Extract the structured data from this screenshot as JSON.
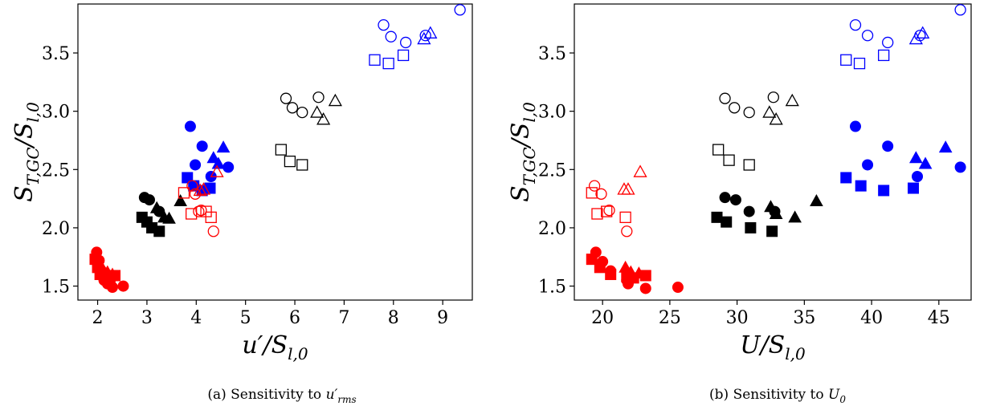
{
  "colors": {
    "red": "#ff0000",
    "black": "#000000",
    "blue": "#0000ff"
  },
  "chart_data": [
    {
      "type": "scatter",
      "xlabel": "u′/S_l,0",
      "ylabel": "S_T,GC/S_l,0",
      "caption": {
        "prefix": "(a)  Sensitivity to ",
        "var": "u′",
        "sub": "rms"
      },
      "xlim": [
        1.6,
        9.6
      ],
      "ylim": [
        1.38,
        3.92
      ],
      "xticks": [
        2,
        3,
        4,
        5,
        6,
        7,
        8,
        9
      ],
      "yticks": [
        1.5,
        2.0,
        2.5,
        3.0,
        3.5
      ],
      "series": [
        {
          "marker": "square",
          "color": "red",
          "filled": true,
          "points": [
            [
              1.95,
              1.73
            ],
            [
              2.0,
              1.66
            ],
            [
              2.05,
              1.6
            ],
            [
              2.15,
              1.57
            ],
            [
              2.25,
              1.58
            ],
            [
              2.35,
              1.59
            ]
          ]
        },
        {
          "marker": "circle",
          "color": "red",
          "filled": true,
          "points": [
            [
              1.98,
              1.79
            ],
            [
              2.03,
              1.72
            ],
            [
              2.08,
              1.63
            ],
            [
              2.13,
              1.55
            ],
            [
              2.2,
              1.52
            ],
            [
              2.3,
              1.49
            ],
            [
              2.52,
              1.5
            ]
          ]
        },
        {
          "marker": "triangle",
          "color": "red",
          "filled": true,
          "points": [
            [
              2.1,
              1.65
            ],
            [
              2.2,
              1.62
            ],
            [
              2.3,
              1.6
            ]
          ]
        },
        {
          "marker": "square",
          "color": "black",
          "filled": true,
          "points": [
            [
              2.9,
              2.09
            ],
            [
              3.0,
              2.05
            ],
            [
              3.1,
              2.0
            ],
            [
              3.25,
              1.97
            ]
          ]
        },
        {
          "marker": "circle",
          "color": "black",
          "filled": true,
          "points": [
            [
              2.95,
              2.26
            ],
            [
              3.05,
              2.24
            ],
            [
              3.25,
              2.14
            ]
          ]
        },
        {
          "marker": "triangle",
          "color": "black",
          "filled": true,
          "points": [
            [
              3.2,
              2.17
            ],
            [
              3.35,
              2.09
            ],
            [
              3.45,
              2.08
            ],
            [
              3.68,
              2.23
            ]
          ]
        },
        {
          "marker": "square",
          "color": "blue",
          "filled": true,
          "points": [
            [
              3.82,
              2.43
            ],
            [
              3.95,
              2.36
            ],
            [
              4.12,
              2.32
            ],
            [
              4.28,
              2.34
            ]
          ]
        },
        {
          "marker": "circle",
          "color": "blue",
          "filled": true,
          "points": [
            [
              3.88,
              2.87
            ],
            [
              3.98,
              2.54
            ],
            [
              4.12,
              2.7
            ],
            [
              4.3,
              2.44
            ],
            [
              4.65,
              2.52
            ]
          ]
        },
        {
          "marker": "triangle",
          "color": "blue",
          "filled": true,
          "points": [
            [
              4.35,
              2.6
            ],
            [
              4.45,
              2.55
            ],
            [
              4.55,
              2.69
            ]
          ]
        },
        {
          "marker": "square",
          "color": "red",
          "filled": false,
          "points": [
            [
              3.75,
              2.3
            ],
            [
              3.9,
              2.12
            ],
            [
              4.2,
              2.14
            ],
            [
              4.3,
              2.09
            ]
          ]
        },
        {
          "marker": "circle",
          "color": "red",
          "filled": false,
          "points": [
            [
              3.92,
              2.36
            ],
            [
              3.98,
              2.29
            ],
            [
              4.05,
              2.14
            ],
            [
              4.1,
              2.15
            ],
            [
              4.35,
              1.97
            ]
          ]
        },
        {
          "marker": "triangle",
          "color": "red",
          "filled": false,
          "points": [
            [
              4.08,
              2.32
            ],
            [
              4.15,
              2.33
            ],
            [
              4.42,
              2.48
            ]
          ]
        },
        {
          "marker": "square",
          "color": "black",
          "filled": false,
          "points": [
            [
              5.72,
              2.67
            ],
            [
              5.9,
              2.57
            ],
            [
              6.15,
              2.54
            ]
          ]
        },
        {
          "marker": "circle",
          "color": "black",
          "filled": false,
          "points": [
            [
              5.82,
              3.11
            ],
            [
              5.95,
              3.03
            ],
            [
              6.15,
              2.99
            ],
            [
              6.48,
              3.12
            ]
          ]
        },
        {
          "marker": "triangle",
          "color": "black",
          "filled": false,
          "points": [
            [
              6.45,
              2.99
            ],
            [
              6.58,
              2.93
            ],
            [
              6.82,
              3.09
            ]
          ]
        },
        {
          "marker": "square",
          "color": "blue",
          "filled": false,
          "points": [
            [
              7.62,
              3.44
            ],
            [
              7.9,
              3.41
            ],
            [
              8.2,
              3.48
            ]
          ]
        },
        {
          "marker": "circle",
          "color": "blue",
          "filled": false,
          "points": [
            [
              7.8,
              3.74
            ],
            [
              7.95,
              3.64
            ],
            [
              8.25,
              3.59
            ],
            [
              8.65,
              3.65
            ],
            [
              9.35,
              3.87
            ]
          ]
        },
        {
          "marker": "triangle",
          "color": "blue",
          "filled": false,
          "points": [
            [
              8.62,
              3.62
            ],
            [
              8.75,
              3.67
            ]
          ]
        }
      ]
    },
    {
      "type": "scatter",
      "xlabel": "U/S_l,0",
      "ylabel": "S_T,GC/S_l,0",
      "caption": {
        "prefix": "(b)  Sensitivity to ",
        "var": "U",
        "sub": "0"
      },
      "xlim": [
        17.9,
        47.4
      ],
      "ylim": [
        1.38,
        3.92
      ],
      "xticks": [
        20,
        25,
        30,
        35,
        40,
        45
      ],
      "yticks": [
        1.5,
        2.0,
        2.5,
        3.0,
        3.5
      ],
      "series": [
        {
          "marker": "square",
          "color": "red",
          "filled": true,
          "points": [
            [
              19.2,
              1.73
            ],
            [
              19.8,
              1.66
            ],
            [
              20.6,
              1.6
            ],
            [
              21.8,
              1.58
            ],
            [
              22.3,
              1.57
            ],
            [
              23.2,
              1.59
            ]
          ]
        },
        {
          "marker": "circle",
          "color": "red",
          "filled": true,
          "points": [
            [
              19.5,
              1.79
            ],
            [
              20.0,
              1.71
            ],
            [
              20.6,
              1.63
            ],
            [
              21.8,
              1.55
            ],
            [
              21.9,
              1.52
            ],
            [
              23.2,
              1.48
            ],
            [
              25.6,
              1.49
            ]
          ]
        },
        {
          "marker": "triangle",
          "color": "red",
          "filled": true,
          "points": [
            [
              21.7,
              1.66
            ],
            [
              22.1,
              1.62
            ],
            [
              22.7,
              1.61
            ]
          ]
        },
        {
          "marker": "square",
          "color": "black",
          "filled": true,
          "points": [
            [
              28.5,
              2.09
            ],
            [
              29.2,
              2.05
            ],
            [
              31.0,
              2.0
            ],
            [
              32.6,
              1.97
            ]
          ]
        },
        {
          "marker": "circle",
          "color": "black",
          "filled": true,
          "points": [
            [
              29.1,
              2.26
            ],
            [
              29.9,
              2.24
            ],
            [
              30.9,
              2.14
            ],
            [
              32.8,
              2.14
            ]
          ]
        },
        {
          "marker": "triangle",
          "color": "black",
          "filled": true,
          "points": [
            [
              32.5,
              2.18
            ],
            [
              32.9,
              2.12
            ],
            [
              34.3,
              2.09
            ],
            [
              35.9,
              2.23
            ]
          ]
        },
        {
          "marker": "square",
          "color": "blue",
          "filled": true,
          "points": [
            [
              38.1,
              2.43
            ],
            [
              39.2,
              2.36
            ],
            [
              40.9,
              2.32
            ],
            [
              43.1,
              2.34
            ]
          ]
        },
        {
          "marker": "circle",
          "color": "blue",
          "filled": true,
          "points": [
            [
              38.8,
              2.87
            ],
            [
              39.7,
              2.54
            ],
            [
              41.2,
              2.7
            ],
            [
              43.4,
              2.44
            ],
            [
              46.6,
              2.52
            ]
          ]
        },
        {
          "marker": "triangle",
          "color": "blue",
          "filled": true,
          "points": [
            [
              43.3,
              2.6
            ],
            [
              44.0,
              2.55
            ],
            [
              45.5,
              2.69
            ]
          ]
        },
        {
          "marker": "square",
          "color": "red",
          "filled": false,
          "points": [
            [
              19.2,
              2.3
            ],
            [
              19.6,
              2.12
            ],
            [
              20.3,
              2.14
            ],
            [
              21.7,
              2.09
            ]
          ]
        },
        {
          "marker": "circle",
          "color": "red",
          "filled": false,
          "points": [
            [
              19.4,
              2.36
            ],
            [
              19.9,
              2.29
            ],
            [
              20.5,
              2.15
            ],
            [
              21.8,
              1.97
            ]
          ]
        },
        {
          "marker": "triangle",
          "color": "red",
          "filled": false,
          "points": [
            [
              21.6,
              2.33
            ],
            [
              21.9,
              2.33
            ],
            [
              22.8,
              2.48
            ]
          ]
        },
        {
          "marker": "square",
          "color": "black",
          "filled": false,
          "points": [
            [
              28.6,
              2.67
            ],
            [
              29.4,
              2.58
            ],
            [
              30.9,
              2.54
            ]
          ]
        },
        {
          "marker": "circle",
          "color": "black",
          "filled": false,
          "points": [
            [
              29.1,
              3.11
            ],
            [
              29.8,
              3.03
            ],
            [
              30.9,
              2.99
            ],
            [
              32.7,
              3.12
            ]
          ]
        },
        {
          "marker": "triangle",
          "color": "black",
          "filled": false,
          "points": [
            [
              32.4,
              2.99
            ],
            [
              32.9,
              2.93
            ],
            [
              34.1,
              3.09
            ]
          ]
        },
        {
          "marker": "square",
          "color": "blue",
          "filled": false,
          "points": [
            [
              38.1,
              3.44
            ],
            [
              39.1,
              3.41
            ],
            [
              40.9,
              3.48
            ]
          ]
        },
        {
          "marker": "circle",
          "color": "blue",
          "filled": false,
          "points": [
            [
              38.8,
              3.74
            ],
            [
              39.7,
              3.65
            ],
            [
              41.2,
              3.59
            ],
            [
              43.6,
              3.65
            ],
            [
              46.6,
              3.87
            ]
          ]
        },
        {
          "marker": "triangle",
          "color": "blue",
          "filled": false,
          "points": [
            [
              43.3,
              3.62
            ],
            [
              43.8,
              3.67
            ]
          ]
        }
      ]
    }
  ]
}
